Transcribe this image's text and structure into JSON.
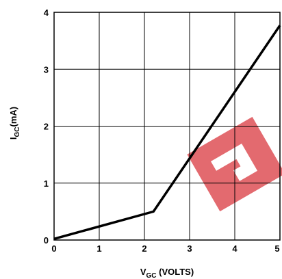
{
  "chart_data": {
    "type": "line",
    "xlabel": {
      "main": "V",
      "sub": "GC",
      "rest": " (VOLTS)"
    },
    "ylabel": {
      "main": "I",
      "sub": "GC",
      "rest": "(mA)"
    },
    "xlim": [
      0,
      5
    ],
    "ylim": [
      0,
      4
    ],
    "xticks": [
      "0",
      "1",
      "2",
      "3",
      "4",
      "5"
    ],
    "yticks": [
      "0",
      "1",
      "2",
      "3",
      "4"
    ],
    "grid": true,
    "series": [
      {
        "x": [
          0,
          2.2,
          5
        ],
        "y": [
          0.02,
          0.5,
          3.77
        ]
      }
    ],
    "colors": {
      "line": "#000000",
      "grid": "#000000",
      "watermark": "#e05a5f"
    }
  }
}
